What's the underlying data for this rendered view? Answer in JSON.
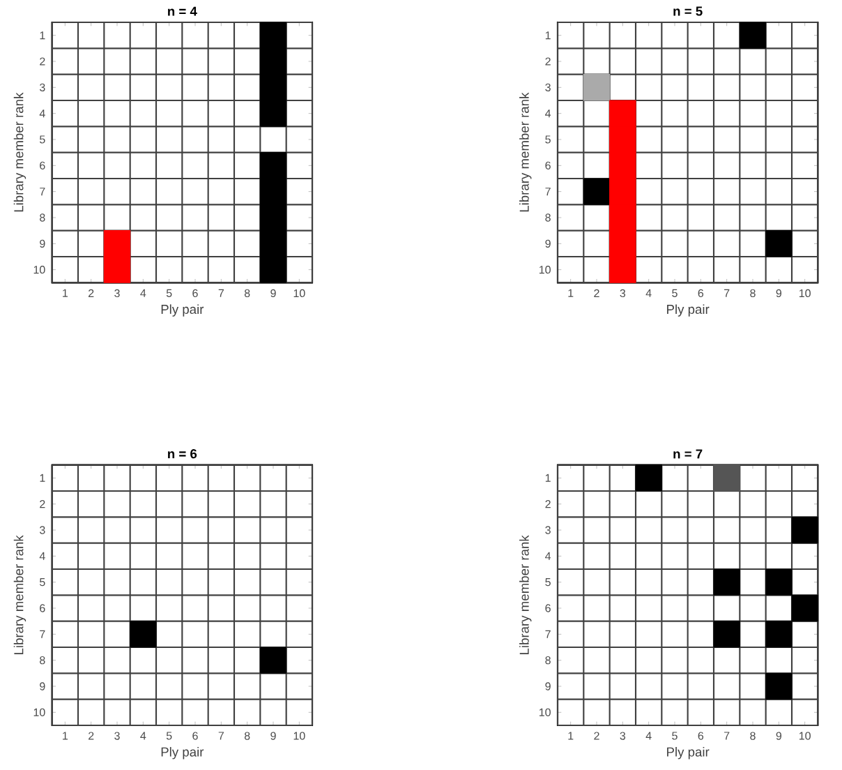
{
  "chart_data": [
    {
      "type": "scatter",
      "title": "n = 4",
      "xlabel": "Ply pair",
      "ylabel": "Library member rank",
      "marker": "square",
      "grid": true,
      "xlim": [
        0.5,
        10.5
      ],
      "ylim": [
        10.5,
        0.5
      ],
      "xticks": [
        {
          "value": 0.5,
          "label": null
        },
        1,
        {
          "value": 1.5,
          "label": null
        },
        2,
        {
          "value": 2.5,
          "label": null
        },
        3,
        {
          "value": 3.5,
          "label": null
        },
        4,
        {
          "value": 4.5,
          "label": null
        },
        5,
        {
          "value": 5.5,
          "label": null
        },
        6,
        {
          "value": 6.5,
          "label": null
        },
        7,
        {
          "value": 7.5,
          "label": null
        },
        8,
        {
          "value": 8.5,
          "label": null
        },
        9,
        {
          "value": 9.5,
          "label": null
        },
        10,
        {
          "value": 10.5,
          "label": null
        }
      ],
      "yticks": [
        {
          "value": 0.5,
          "label": null
        },
        1,
        {
          "value": 1.5,
          "label": null
        },
        2,
        {
          "value": 2.5,
          "label": null
        },
        3,
        {
          "value": 3.5,
          "label": null
        },
        4,
        {
          "value": 4.5,
          "label": null
        },
        5,
        {
          "value": 5.5,
          "label": null
        },
        6,
        {
          "value": 6.5,
          "label": null
        },
        7,
        {
          "value": 7.5,
          "label": null
        },
        8,
        {
          "value": 8.5,
          "label": null
        },
        9,
        {
          "value": 9.5,
          "label": null
        },
        10,
        {
          "value": 10.5,
          "label": null
        }
      ],
      "series": [
        {
          "color": "#000000",
          "x": [
            9,
            9,
            9,
            9,
            9,
            9,
            9,
            9,
            9
          ],
          "values": [
            1,
            2,
            3,
            4,
            6,
            7,
            8,
            9,
            10
          ]
        },
        {
          "color": "#ff0000",
          "x": [
            3,
            3
          ],
          "values": [
            9,
            10
          ]
        }
      ]
    },
    {
      "type": "scatter",
      "title": "n = 5",
      "xlabel": "Ply pair",
      "ylabel": "Library member rank",
      "marker": "square",
      "grid": true,
      "xlim": [
        0.5,
        10.5
      ],
      "ylim": [
        10.5,
        0.5
      ],
      "xticks": [
        {
          "value": 0.5,
          "label": null
        },
        1,
        {
          "value": 1.5,
          "label": null
        },
        2,
        {
          "value": 2.5,
          "label": null
        },
        3,
        {
          "value": 3.5,
          "label": null
        },
        4,
        {
          "value": 4.5,
          "label": null
        },
        5,
        {
          "value": 5.5,
          "label": null
        },
        6,
        {
          "value": 6.5,
          "label": null
        },
        7,
        {
          "value": 7.5,
          "label": null
        },
        8,
        {
          "value": 8.5,
          "label": null
        },
        9,
        {
          "value": 9.5,
          "label": null
        },
        10,
        {
          "value": 10.5,
          "label": null
        }
      ],
      "yticks": [
        {
          "value": 0.5,
          "label": null
        },
        1,
        {
          "value": 1.5,
          "label": null
        },
        2,
        {
          "value": 2.5,
          "label": null
        },
        3,
        {
          "value": 3.5,
          "label": null
        },
        4,
        {
          "value": 4.5,
          "label": null
        },
        5,
        {
          "value": 5.5,
          "label": null
        },
        6,
        {
          "value": 6.5,
          "label": null
        },
        7,
        {
          "value": 7.5,
          "label": null
        },
        8,
        {
          "value": 8.5,
          "label": null
        },
        9,
        {
          "value": 9.5,
          "label": null
        },
        10,
        {
          "value": 10.5,
          "label": null
        }
      ],
      "series": [
        {
          "color": "#000000",
          "x": [
            8,
            2,
            9
          ],
          "values": [
            1,
            7,
            9
          ]
        },
        {
          "color": "#aaaaaa",
          "x": [
            2
          ],
          "values": [
            3
          ]
        },
        {
          "color": "#ff0000",
          "x": [
            3,
            3,
            3,
            3,
            3,
            3,
            3
          ],
          "values": [
            4,
            5,
            6,
            7,
            8,
            9,
            10
          ]
        }
      ]
    },
    {
      "type": "scatter",
      "title": "n = 6",
      "xlabel": "Ply pair",
      "ylabel": "Library member rank",
      "marker": "square",
      "grid": true,
      "xlim": [
        0.5,
        10.5
      ],
      "ylim": [
        10.5,
        0.5
      ],
      "xticks": [
        {
          "value": 0.5,
          "label": null
        },
        1,
        {
          "value": 1.5,
          "label": null
        },
        2,
        {
          "value": 2.5,
          "label": null
        },
        3,
        {
          "value": 3.5,
          "label": null
        },
        4,
        {
          "value": 4.5,
          "label": null
        },
        5,
        {
          "value": 5.5,
          "label": null
        },
        6,
        {
          "value": 6.5,
          "label": null
        },
        7,
        {
          "value": 7.5,
          "label": null
        },
        8,
        {
          "value": 8.5,
          "label": null
        },
        9,
        {
          "value": 9.5,
          "label": null
        },
        10,
        {
          "value": 10.5,
          "label": null
        }
      ],
      "yticks": [
        {
          "value": 0.5,
          "label": null
        },
        1,
        {
          "value": 1.5,
          "label": null
        },
        2,
        {
          "value": 2.5,
          "label": null
        },
        3,
        {
          "value": 3.5,
          "label": null
        },
        4,
        {
          "value": 4.5,
          "label": null
        },
        5,
        {
          "value": 5.5,
          "label": null
        },
        6,
        {
          "value": 6.5,
          "label": null
        },
        7,
        {
          "value": 7.5,
          "label": null
        },
        8,
        {
          "value": 8.5,
          "label": null
        },
        9,
        {
          "value": 9.5,
          "label": null
        },
        10,
        {
          "value": 10.5,
          "label": null
        }
      ],
      "series": [
        {
          "color": "#000000",
          "x": [
            4,
            9
          ],
          "values": [
            7,
            8
          ]
        }
      ]
    },
    {
      "type": "scatter",
      "title": "n = 7",
      "xlabel": "Ply pair",
      "ylabel": "Library member rank",
      "marker": "square",
      "grid": true,
      "xlim": [
        0.5,
        10.5
      ],
      "ylim": [
        10.5,
        0.5
      ],
      "xticks": [
        {
          "value": 0.5,
          "label": null
        },
        1,
        {
          "value": 1.5,
          "label": null
        },
        2,
        {
          "value": 2.5,
          "label": null
        },
        3,
        {
          "value": 3.5,
          "label": null
        },
        4,
        {
          "value": 4.5,
          "label": null
        },
        5,
        {
          "value": 5.5,
          "label": null
        },
        6,
        {
          "value": 6.5,
          "label": null
        },
        7,
        {
          "value": 7.5,
          "label": null
        },
        8,
        {
          "value": 8.5,
          "label": null
        },
        9,
        {
          "value": 9.5,
          "label": null
        },
        10,
        {
          "value": 10.5,
          "label": null
        }
      ],
      "yticks": [
        {
          "value": 0.5,
          "label": null
        },
        1,
        {
          "value": 1.5,
          "label": null
        },
        2,
        {
          "value": 2.5,
          "label": null
        },
        3,
        {
          "value": 3.5,
          "label": null
        },
        4,
        {
          "value": 4.5,
          "label": null
        },
        5,
        {
          "value": 5.5,
          "label": null
        },
        6,
        {
          "value": 6.5,
          "label": null
        },
        7,
        {
          "value": 7.5,
          "label": null
        },
        8,
        {
          "value": 8.5,
          "label": null
        },
        9,
        {
          "value": 9.5,
          "label": null
        },
        10,
        {
          "value": 10.5,
          "label": null
        }
      ],
      "series": [
        {
          "color": "#000000",
          "x": [
            4,
            10,
            7,
            9,
            10,
            7,
            9,
            9
          ],
          "values": [
            1,
            3,
            5,
            5,
            6,
            7,
            7,
            9
          ]
        },
        {
          "color": "#555555",
          "x": [
            7
          ],
          "values": [
            1
          ]
        }
      ]
    }
  ]
}
